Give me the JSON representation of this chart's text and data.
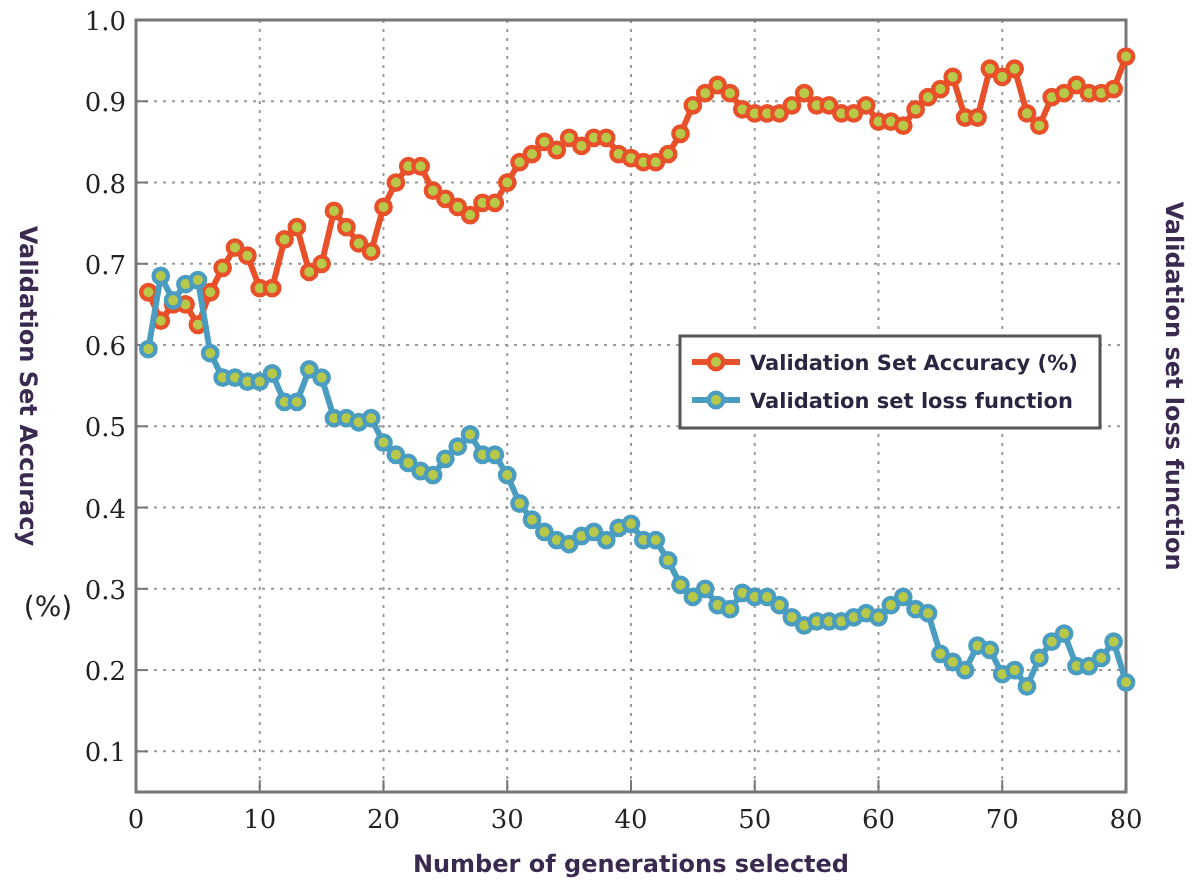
{
  "chart_data": {
    "type": "line",
    "xlabel": "Number of generations selected",
    "ylabel": "Validation Set Accuracy",
    "y2label": "Validation set loss function",
    "annotations": [
      "(%)"
    ],
    "x": [
      1,
      2,
      3,
      4,
      5,
      6,
      7,
      8,
      9,
      10,
      11,
      12,
      13,
      14,
      15,
      16,
      17,
      18,
      19,
      20,
      21,
      22,
      23,
      24,
      25,
      26,
      27,
      28,
      29,
      30,
      31,
      32,
      33,
      34,
      35,
      36,
      37,
      38,
      39,
      40,
      41,
      42,
      43,
      44,
      45,
      46,
      47,
      48,
      49,
      50,
      51,
      52,
      53,
      54,
      55,
      56,
      57,
      58,
      59,
      60,
      61,
      62,
      63,
      64,
      65,
      66,
      67,
      68,
      69,
      70,
      71,
      72,
      73,
      74,
      75,
      76,
      77,
      78,
      79,
      80
    ],
    "series": [
      {
        "name": "Validation Set Accuracy (%)",
        "color": "#e8502a",
        "values": [
          0.665,
          0.63,
          0.65,
          0.65,
          0.625,
          0.665,
          0.695,
          0.72,
          0.71,
          0.67,
          0.67,
          0.73,
          0.745,
          0.69,
          0.7,
          0.765,
          0.745,
          0.725,
          0.715,
          0.77,
          0.8,
          0.82,
          0.82,
          0.79,
          0.78,
          0.77,
          0.76,
          0.775,
          0.775,
          0.8,
          0.825,
          0.835,
          0.85,
          0.84,
          0.855,
          0.845,
          0.855,
          0.855,
          0.835,
          0.83,
          0.825,
          0.825,
          0.835,
          0.86,
          0.895,
          0.91,
          0.92,
          0.91,
          0.89,
          0.885,
          0.885,
          0.885,
          0.895,
          0.91,
          0.895,
          0.895,
          0.885,
          0.885,
          0.895,
          0.875,
          0.875,
          0.87,
          0.89,
          0.905,
          0.915,
          0.93,
          0.88,
          0.88,
          0.94,
          0.93,
          0.94,
          0.885,
          0.87,
          0.905,
          0.91,
          0.92,
          0.91,
          0.91,
          0.915,
          0.955
        ]
      },
      {
        "name": "Validation set loss function",
        "color": "#4a9cc0",
        "values": [
          0.595,
          0.685,
          0.655,
          0.675,
          0.68,
          0.59,
          0.56,
          0.56,
          0.555,
          0.555,
          0.565,
          0.53,
          0.53,
          0.57,
          0.56,
          0.51,
          0.51,
          0.505,
          0.51,
          0.48,
          0.465,
          0.455,
          0.445,
          0.44,
          0.46,
          0.475,
          0.49,
          0.465,
          0.465,
          0.44,
          0.405,
          0.385,
          0.37,
          0.36,
          0.355,
          0.365,
          0.37,
          0.36,
          0.375,
          0.38,
          0.36,
          0.36,
          0.335,
          0.305,
          0.29,
          0.3,
          0.28,
          0.275,
          0.295,
          0.29,
          0.29,
          0.28,
          0.265,
          0.255,
          0.26,
          0.26,
          0.26,
          0.265,
          0.27,
          0.265,
          0.28,
          0.29,
          0.275,
          0.27,
          0.22,
          0.21,
          0.2,
          0.23,
          0.225,
          0.195,
          0.2,
          0.18,
          0.215,
          0.235,
          0.245,
          0.205,
          0.205,
          0.215,
          0.235,
          0.185
        ]
      }
    ],
    "xlim": [
      0,
      80
    ],
    "xticks": [
      0,
      10,
      20,
      30,
      40,
      50,
      60,
      70,
      80
    ],
    "ylim": [
      0.05,
      1.0
    ],
    "yticks": [
      {
        "value": 0.1,
        "label": "0.1"
      },
      {
        "value": 0.2,
        "label": "0.2"
      },
      {
        "value": 0.3,
        "label": "0.3"
      },
      {
        "value": 0.4,
        "label": "0.4"
      },
      {
        "value": 0.5,
        "label": "0.5"
      },
      {
        "value": 0.6,
        "label": "0.6"
      },
      {
        "value": 0.7,
        "label": "0.7"
      },
      {
        "value": 0.8,
        "label": "0.8"
      },
      {
        "value": 0.9,
        "label": "0.9"
      },
      {
        "value": 1.0,
        "label": "1.0"
      }
    ],
    "grid": true,
    "legend": "right",
    "marker": "circle",
    "line_style": "solid"
  }
}
